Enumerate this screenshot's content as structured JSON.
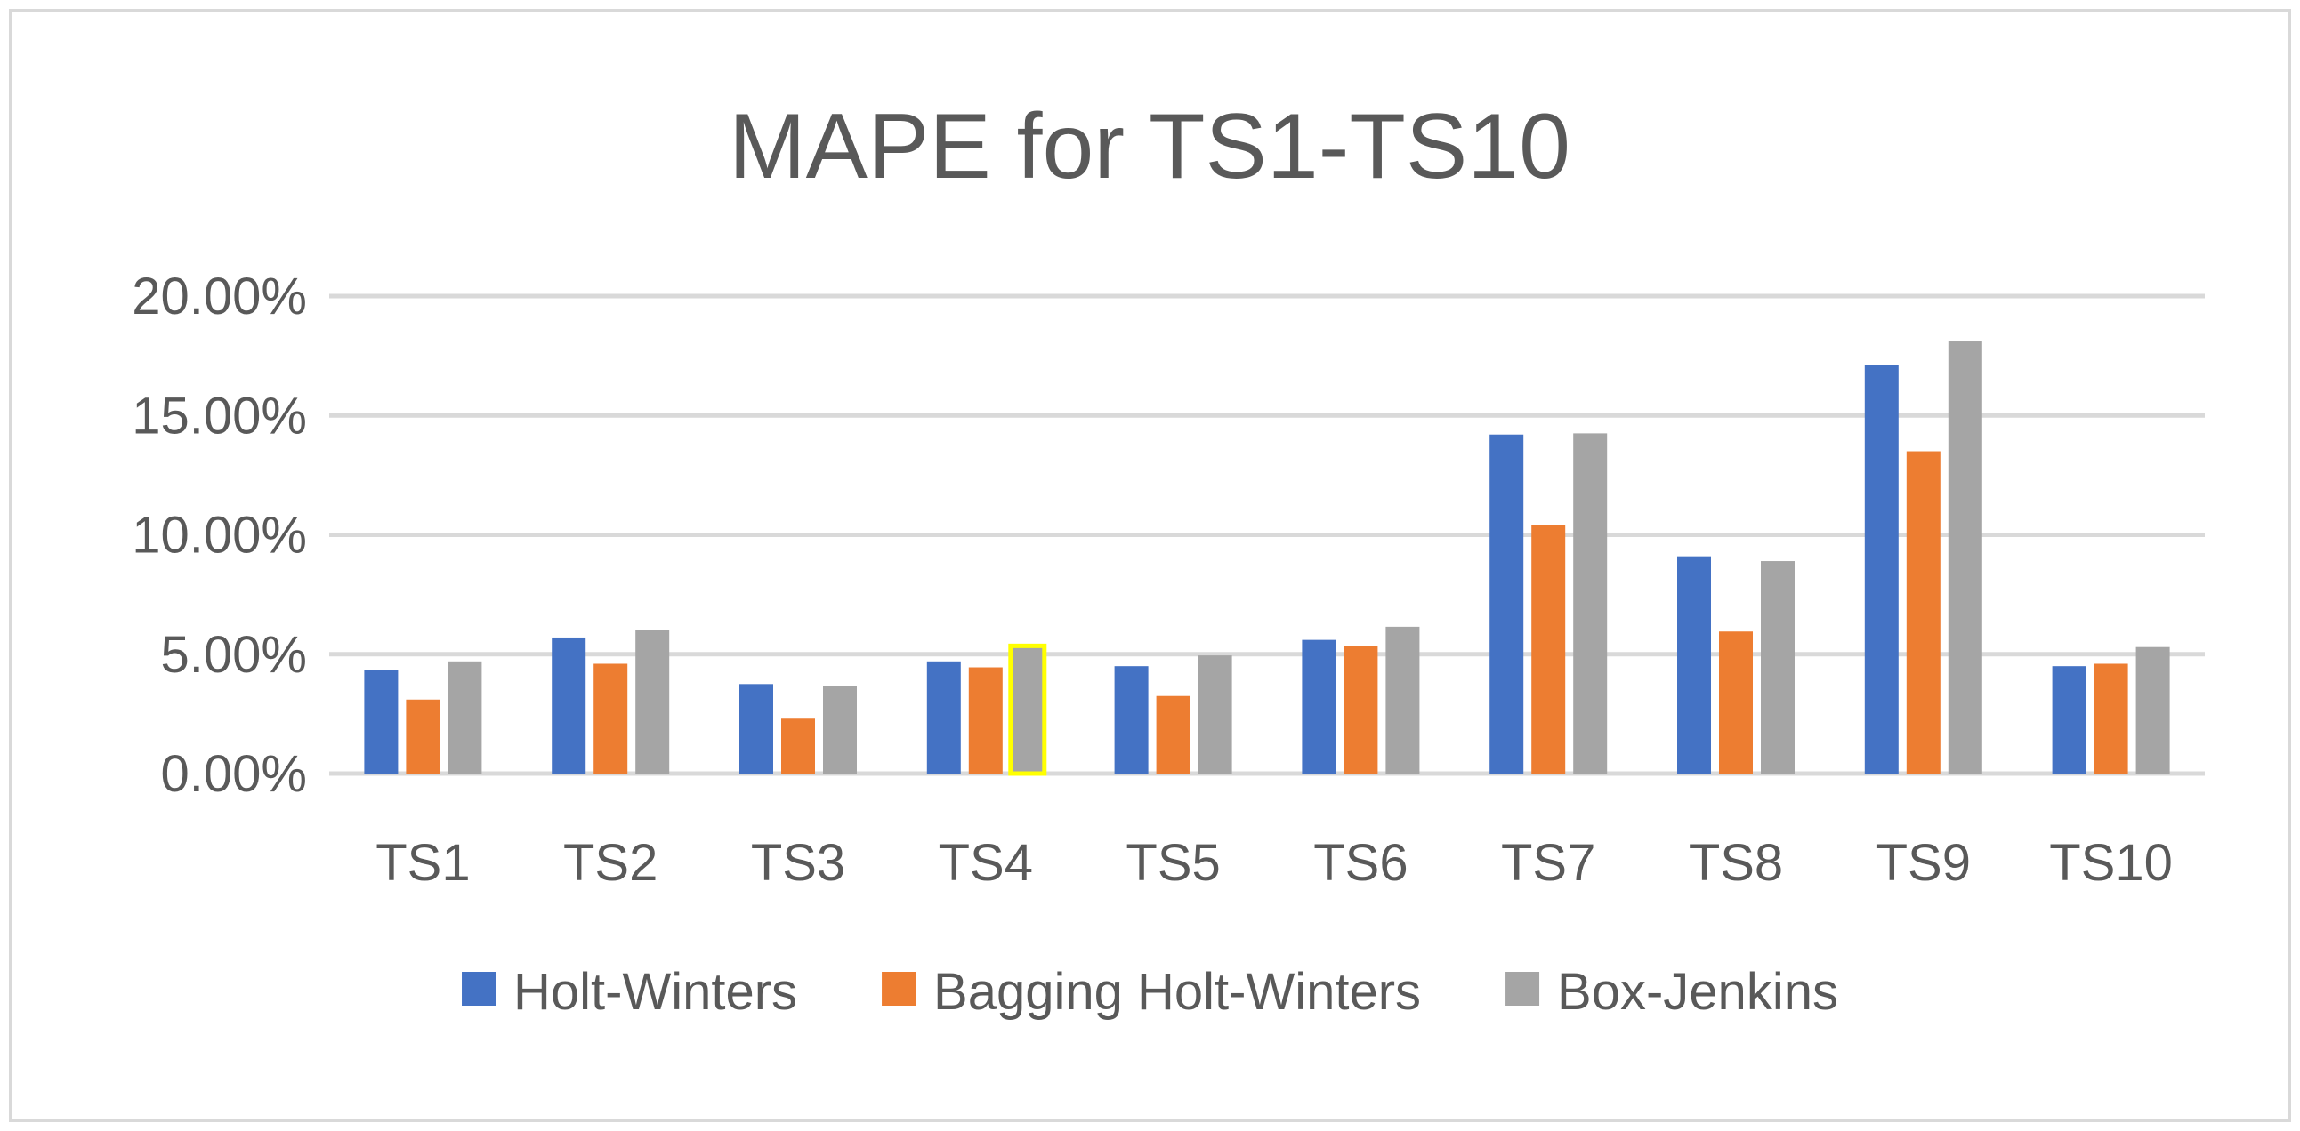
{
  "chart_data": {
    "type": "bar",
    "title": "MAPE for TS1-TS10",
    "xlabel": "",
    "ylabel": "",
    "categories": [
      "TS1",
      "TS2",
      "TS3",
      "TS4",
      "TS5",
      "TS6",
      "TS7",
      "TS8",
      "TS9",
      "TS10"
    ],
    "series": [
      {
        "name": "Holt-Winters",
        "color": "#4472C4",
        "values": [
          4.35,
          5.7,
          3.75,
          4.7,
          4.5,
          5.6,
          14.2,
          9.1,
          17.1,
          4.5
        ]
      },
      {
        "name": "Bagging Holt-Winters",
        "color": "#ED7D31",
        "values": [
          3.1,
          4.6,
          2.3,
          4.45,
          3.25,
          5.35,
          10.4,
          5.95,
          13.5,
          4.6
        ]
      },
      {
        "name": "Box-Jenkins",
        "color": "#A5A5A5",
        "values": [
          4.7,
          6.0,
          3.65,
          5.35,
          4.95,
          6.15,
          14.25,
          8.9,
          18.1,
          5.3
        ]
      }
    ],
    "ylim": [
      0,
      20
    ],
    "yticks": [
      "0.00%",
      "5.00%",
      "10.00%",
      "15.00%",
      "20.00%"
    ],
    "y_tick_values": [
      0,
      5,
      10,
      15,
      20
    ],
    "grid": true,
    "legend_position": "bottom",
    "highlight": {
      "series": "Box-Jenkins",
      "category": "TS4",
      "outline_color": "#FFFF00"
    },
    "colors": {
      "grid": "#D9D9D9",
      "text": "#595959",
      "border": "#D9D9D9"
    }
  }
}
